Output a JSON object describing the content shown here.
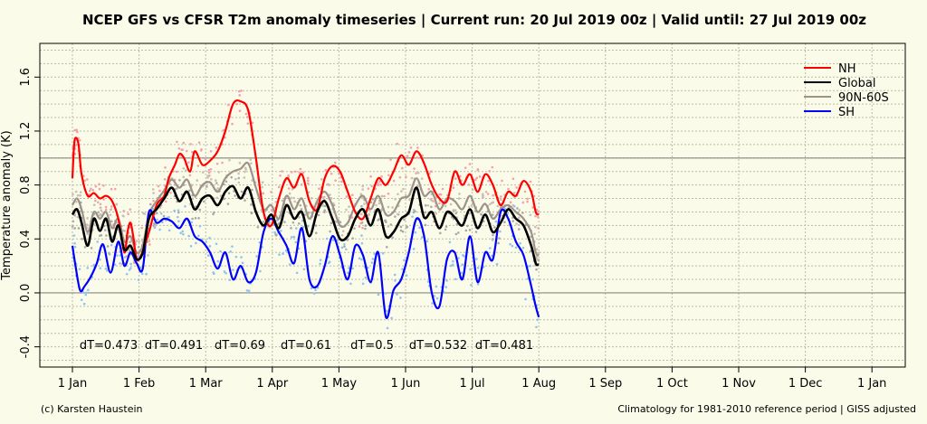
{
  "chart_data": {
    "type": "line",
    "title": "NCEP GFS vs CFSR T2m anomaly timeseries | Current run: 20 Jul 2019 00z | Valid until: 27 Jul 2019 00z",
    "ylabel": "Temperature anomaly (K)",
    "xlabel": "",
    "ylim": [
      -0.55,
      1.85
    ],
    "xlim": [
      1,
      32
    ],
    "y_ticks": [
      "-0.4",
      "0.0",
      "0.4",
      "0.8",
      "1.2",
      "1.6"
    ],
    "x_ticks": [
      "1 Jan",
      "1 Feb",
      "1 Mar",
      "1 Apr",
      "1 May",
      "1 Jun",
      "1 Jul",
      "1 Aug",
      "1 Sep",
      "1 Oct",
      "1 Nov",
      "1 Dec",
      "1 Jan"
    ],
    "grid": true,
    "reference_lines": [
      0.0,
      1.0
    ],
    "legend_position": "top-right",
    "series": [
      {
        "name": "NH",
        "color": "#ff0000",
        "x": [
          1.0,
          1.1,
          1.2,
          1.4,
          1.6,
          2.0,
          2.4,
          2.8,
          3.2,
          3.6,
          4.0,
          4.4,
          4.6,
          4.8,
          5.0,
          5.2,
          5.5,
          6.0,
          6.5,
          7.0,
          7.3,
          7.7,
          8.0,
          8.3,
          8.7,
          9.0,
          9.5,
          10.0,
          10.5,
          11.0,
          11.5,
          12.0,
          12.5,
          13.0,
          13.5,
          14.0,
          14.5,
          15.0,
          15.5,
          16.0,
          16.5,
          17.0,
          17.5,
          18.0,
          18.5,
          19.0,
          19.5,
          20.0,
          20.5,
          21.0,
          21.5,
          22.0,
          22.5,
          23.0,
          23.5,
          24.0,
          24.5,
          25.0,
          25.5,
          26.0,
          26.5,
          27.0,
          27.5,
          28.0,
          28.5,
          29.0,
          29.5,
          30.0,
          30.5,
          31.0,
          31.3,
          31.5
        ],
        "y": [
          0.85,
          1.08,
          1.15,
          1.1,
          0.88,
          0.72,
          0.74,
          0.7,
          0.72,
          0.68,
          0.55,
          0.3,
          0.45,
          0.52,
          0.4,
          0.25,
          0.28,
          0.45,
          0.65,
          0.72,
          0.85,
          0.95,
          1.03,
          1.0,
          0.9,
          1.05,
          0.95,
          0.98,
          1.05,
          1.2,
          1.4,
          1.42,
          1.35,
          1.0,
          0.6,
          0.5,
          0.7,
          0.85,
          0.78,
          0.88,
          0.68,
          0.62,
          0.85,
          0.94,
          0.9,
          0.75,
          0.6,
          0.55,
          0.7,
          0.85,
          0.8,
          0.9,
          1.02,
          0.95,
          1.05,
          0.96,
          0.8,
          0.7,
          0.68,
          0.9,
          0.8,
          0.88,
          0.75,
          0.88,
          0.8,
          0.65,
          0.75,
          0.72,
          0.83,
          0.75,
          0.6,
          0.58
        ]
      },
      {
        "name": "Global",
        "color": "#000000",
        "x": [
          1.0,
          1.3,
          1.6,
          2.0,
          2.4,
          2.8,
          3.2,
          3.6,
          4.0,
          4.4,
          4.8,
          5.2,
          5.6,
          6.0,
          6.5,
          7.0,
          7.5,
          8.0,
          8.5,
          9.0,
          9.5,
          10.0,
          10.5,
          11.0,
          11.5,
          12.0,
          12.5,
          13.0,
          13.5,
          14.0,
          14.5,
          15.0,
          15.5,
          16.0,
          16.5,
          17.0,
          17.5,
          18.0,
          18.5,
          19.0,
          19.5,
          20.0,
          20.5,
          21.0,
          21.5,
          22.0,
          22.5,
          23.0,
          23.5,
          24.0,
          24.5,
          25.0,
          25.5,
          26.0,
          26.5,
          27.0,
          27.5,
          28.0,
          28.5,
          29.0,
          29.5,
          30.0,
          30.5,
          31.0,
          31.3,
          31.5
        ],
        "y": [
          0.58,
          0.62,
          0.52,
          0.35,
          0.55,
          0.46,
          0.55,
          0.38,
          0.5,
          0.32,
          0.35,
          0.25,
          0.3,
          0.55,
          0.62,
          0.7,
          0.78,
          0.68,
          0.75,
          0.62,
          0.7,
          0.72,
          0.65,
          0.75,
          0.79,
          0.7,
          0.78,
          0.6,
          0.5,
          0.58,
          0.48,
          0.65,
          0.55,
          0.6,
          0.42,
          0.6,
          0.68,
          0.55,
          0.4,
          0.42,
          0.55,
          0.62,
          0.5,
          0.62,
          0.42,
          0.45,
          0.55,
          0.6,
          0.78,
          0.56,
          0.6,
          0.48,
          0.6,
          0.56,
          0.5,
          0.62,
          0.48,
          0.58,
          0.45,
          0.52,
          0.62,
          0.55,
          0.5,
          0.35,
          0.22,
          0.21
        ]
      },
      {
        "name": "90N-60S",
        "color": "#9e938a",
        "x": [
          1.0,
          1.3,
          1.6,
          2.0,
          2.4,
          2.8,
          3.2,
          3.6,
          4.0,
          4.4,
          4.8,
          5.2,
          5.6,
          6.0,
          6.5,
          7.0,
          7.5,
          8.0,
          8.5,
          9.0,
          9.5,
          10.0,
          10.5,
          11.0,
          11.5,
          12.0,
          12.5,
          13.0,
          13.5,
          14.0,
          14.5,
          15.0,
          15.5,
          16.0,
          16.5,
          17.0,
          17.5,
          18.0,
          18.5,
          19.0,
          19.5,
          20.0,
          20.5,
          21.0,
          21.5,
          22.0,
          22.5,
          23.0,
          23.5,
          24.0,
          24.5,
          25.0,
          25.5,
          26.0,
          26.5,
          27.0,
          27.5,
          28.0,
          28.5,
          29.0,
          29.5,
          30.0,
          30.5,
          31.0,
          31.3,
          31.5
        ],
        "y": [
          0.65,
          0.7,
          0.62,
          0.45,
          0.6,
          0.55,
          0.6,
          0.48,
          0.55,
          0.38,
          0.42,
          0.3,
          0.35,
          0.58,
          0.68,
          0.76,
          0.84,
          0.78,
          0.84,
          0.72,
          0.8,
          0.82,
          0.75,
          0.85,
          0.9,
          0.92,
          0.96,
          0.78,
          0.62,
          0.65,
          0.55,
          0.72,
          0.62,
          0.7,
          0.55,
          0.68,
          0.75,
          0.65,
          0.5,
          0.52,
          0.65,
          0.72,
          0.62,
          0.72,
          0.58,
          0.6,
          0.7,
          0.72,
          0.85,
          0.72,
          0.75,
          0.62,
          0.7,
          0.68,
          0.62,
          0.72,
          0.6,
          0.66,
          0.55,
          0.62,
          0.65,
          0.6,
          0.55,
          0.45,
          0.3,
          0.28
        ]
      },
      {
        "name": "SH",
        "color": "#0000ff",
        "x": [
          1.0,
          1.2,
          1.5,
          1.8,
          2.2,
          2.6,
          3.0,
          3.5,
          4.0,
          4.4,
          4.8,
          5.2,
          5.6,
          6.0,
          6.5,
          7.0,
          7.5,
          8.0,
          8.5,
          9.0,
          9.5,
          10.0,
          10.5,
          11.0,
          11.5,
          12.0,
          12.5,
          13.0,
          13.5,
          14.0,
          14.5,
          15.0,
          15.5,
          16.0,
          16.5,
          17.0,
          17.5,
          18.0,
          18.5,
          19.0,
          19.5,
          20.0,
          20.5,
          21.0,
          21.5,
          22.0,
          22.5,
          23.0,
          23.5,
          24.0,
          24.5,
          25.0,
          25.5,
          26.0,
          26.5,
          27.0,
          27.5,
          28.0,
          28.5,
          29.0,
          29.5,
          30.0,
          30.5,
          31.0,
          31.3,
          31.5
        ],
        "y": [
          0.35,
          0.2,
          0.02,
          0.05,
          0.12,
          0.22,
          0.36,
          0.15,
          0.38,
          0.2,
          0.3,
          0.22,
          0.18,
          0.6,
          0.52,
          0.55,
          0.53,
          0.48,
          0.55,
          0.42,
          0.38,
          0.3,
          0.18,
          0.3,
          0.1,
          0.2,
          0.08,
          0.15,
          0.45,
          0.55,
          0.45,
          0.35,
          0.22,
          0.48,
          0.1,
          0.05,
          0.2,
          0.42,
          0.28,
          0.1,
          0.35,
          0.28,
          0.08,
          0.3,
          -0.18,
          0.02,
          0.1,
          0.3,
          0.55,
          0.42,
          0.0,
          -0.1,
          0.25,
          0.3,
          0.1,
          0.42,
          0.08,
          0.3,
          0.25,
          0.6,
          0.55,
          0.38,
          0.28,
          0.05,
          -0.1,
          -0.18
        ]
      }
    ],
    "annotations": [
      {
        "text": "dT=0.473",
        "x": 1.5
      },
      {
        "text": "dT=0.491",
        "x": 4.5
      },
      {
        "text": "dT=0.69",
        "x": 7.5
      },
      {
        "text": "dT=0.61",
        "x": 10.5
      },
      {
        "text": "dT=0.5",
        "x": 13.5
      },
      {
        "text": "dT=0.532",
        "x": 16.5
      },
      {
        "text": "dT=0.481",
        "x": 19.5
      }
    ],
    "footer_left": "(c) Karsten Haustein",
    "footer_right": "Climatology for 1981-2010 reference period | GISS adjusted"
  }
}
